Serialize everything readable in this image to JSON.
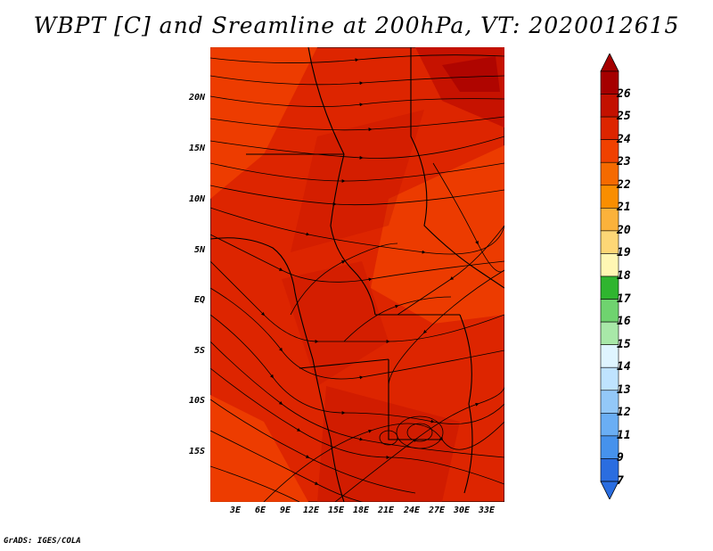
{
  "title": "WBPT [C] and Sreamline at 200hPa, VT: 2020012615",
  "credit": "GrADS: IGES/COLA",
  "lat_labels": [
    "20N",
    "15N",
    "10N",
    "5N",
    "EQ",
    "5S",
    "10S",
    "15S"
  ],
  "lon_labels": [
    "3E",
    "6E",
    "9E",
    "12E",
    "15E",
    "18E",
    "21E",
    "24E",
    "27E",
    "30E",
    "33E"
  ],
  "colorbar": {
    "labels": [
      "26",
      "25",
      "24",
      "23",
      "22",
      "21",
      "20",
      "19",
      "18",
      "17",
      "16",
      "15",
      "14",
      "13",
      "12",
      "11",
      "9",
      "7"
    ],
    "colors": [
      "#a50000",
      "#c31100",
      "#dd2500",
      "#f04100",
      "#f56a00",
      "#f98e00",
      "#fbb23b",
      "#fdd776",
      "#fff7b3",
      "#2fb52f",
      "#6fd36f",
      "#a8e8a8",
      "#dff5ff",
      "#bfe3ff",
      "#93c8f8",
      "#6aaef4",
      "#4692ec",
      "#2a6de0"
    ]
  },
  "map": {
    "field_colors": {
      "low": "#f04100",
      "mid": "#dd2500",
      "high": "#c31100",
      "peak": "#a50000"
    }
  }
}
